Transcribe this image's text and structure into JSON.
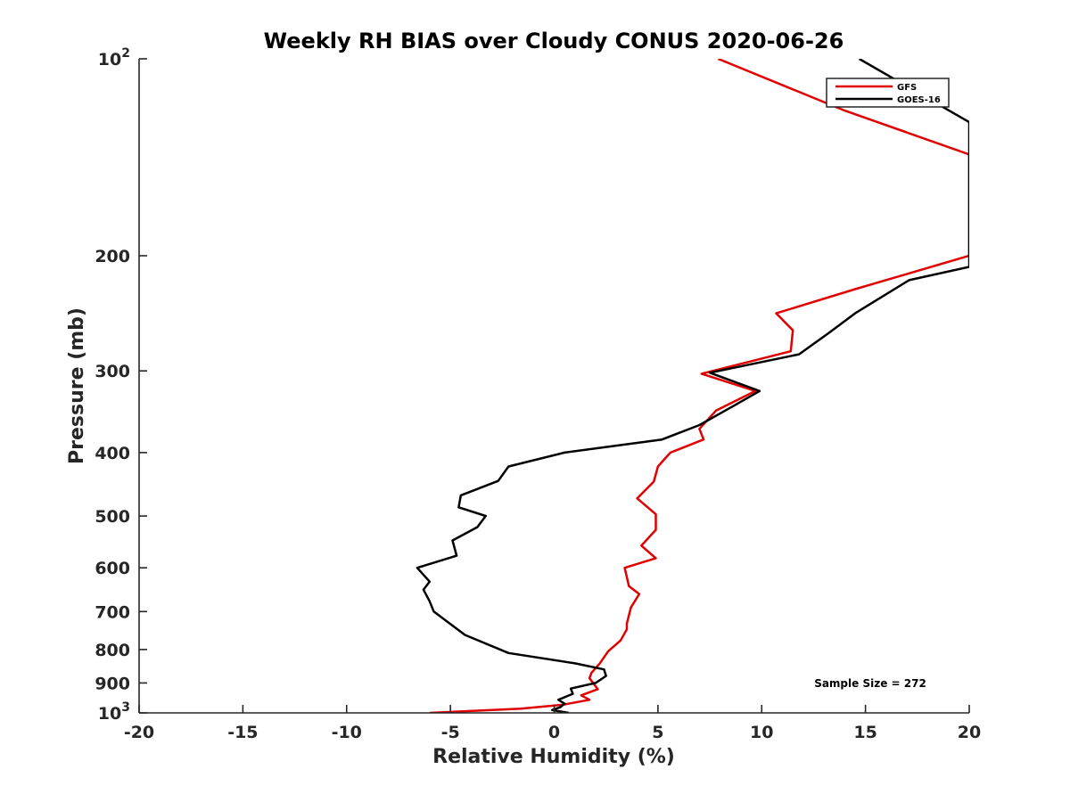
{
  "chart_data": {
    "type": "line",
    "title": "Weekly RH BIAS over Cloudy CONUS 2020-06-26",
    "xlabel": "Relative Humidity (%)",
    "ylabel": "Pressure (mb)",
    "xlim": [
      -20,
      20
    ],
    "ylim": [
      100,
      1000
    ],
    "yscale": "log",
    "y_reversed": true,
    "grid": false,
    "legend_position": "top-right",
    "x_ticks": [
      -20,
      -15,
      -10,
      -5,
      0,
      5,
      10,
      15,
      20
    ],
    "y_ticks": [
      {
        "value": 100,
        "base": "10",
        "exponent": "2"
      },
      {
        "value": 200,
        "label": "200"
      },
      {
        "value": 300,
        "label": "300"
      },
      {
        "value": 400,
        "label": "400"
      },
      {
        "value": 500,
        "label": "500"
      },
      {
        "value": 600,
        "label": "600"
      },
      {
        "value": 700,
        "label": "700"
      },
      {
        "value": 800,
        "label": "800"
      },
      {
        "value": 900,
        "label": "900"
      },
      {
        "value": 1000,
        "base": "10",
        "exponent": "3"
      }
    ],
    "annotation": "Sample Size = 272",
    "series": [
      {
        "name": "GFS",
        "color": "#e00000",
        "points": [
          {
            "x": 7.9,
            "y": 100
          },
          {
            "x": 14.0,
            "y": 120
          },
          {
            "x": 20.0,
            "y": 140
          },
          {
            "x": 20.0,
            "y": 200
          },
          {
            "x": 14.5,
            "y": 225
          },
          {
            "x": 10.7,
            "y": 245
          },
          {
            "x": 11.5,
            "y": 260
          },
          {
            "x": 11.4,
            "y": 280
          },
          {
            "x": 7.1,
            "y": 303
          },
          {
            "x": 9.7,
            "y": 322
          },
          {
            "x": 7.8,
            "y": 345
          },
          {
            "x": 7.0,
            "y": 368
          },
          {
            "x": 7.2,
            "y": 382
          },
          {
            "x": 5.6,
            "y": 400
          },
          {
            "x": 5.0,
            "y": 420
          },
          {
            "x": 4.8,
            "y": 443
          },
          {
            "x": 4.0,
            "y": 470
          },
          {
            "x": 4.9,
            "y": 497
          },
          {
            "x": 4.9,
            "y": 525
          },
          {
            "x": 4.2,
            "y": 555
          },
          {
            "x": 4.9,
            "y": 580
          },
          {
            "x": 3.4,
            "y": 600
          },
          {
            "x": 3.6,
            "y": 640
          },
          {
            "x": 4.1,
            "y": 658
          },
          {
            "x": 3.7,
            "y": 690
          },
          {
            "x": 3.5,
            "y": 730
          },
          {
            "x": 3.5,
            "y": 745
          },
          {
            "x": 3.2,
            "y": 775
          },
          {
            "x": 2.6,
            "y": 805
          },
          {
            "x": 2.2,
            "y": 840
          },
          {
            "x": 1.8,
            "y": 868
          },
          {
            "x": 1.7,
            "y": 885
          },
          {
            "x": 2.1,
            "y": 920
          },
          {
            "x": 1.3,
            "y": 940
          },
          {
            "x": 1.7,
            "y": 955
          },
          {
            "x": 0.4,
            "y": 972
          },
          {
            "x": -1.6,
            "y": 985
          },
          {
            "x": -6.0,
            "y": 1000
          }
        ]
      },
      {
        "name": "GOES-16",
        "color": "#000000",
        "points": [
          {
            "x": 14.7,
            "y": 100
          },
          {
            "x": 20.0,
            "y": 125
          },
          {
            "x": 20.0,
            "y": 208
          },
          {
            "x": 17.1,
            "y": 218
          },
          {
            "x": 14.5,
            "y": 245
          },
          {
            "x": 13.2,
            "y": 263
          },
          {
            "x": 11.8,
            "y": 283
          },
          {
            "x": 7.5,
            "y": 302
          },
          {
            "x": 9.9,
            "y": 322
          },
          {
            "x": 8.6,
            "y": 340
          },
          {
            "x": 7.0,
            "y": 363
          },
          {
            "x": 5.2,
            "y": 382
          },
          {
            "x": 0.5,
            "y": 400
          },
          {
            "x": -2.2,
            "y": 420
          },
          {
            "x": -2.7,
            "y": 442
          },
          {
            "x": -4.5,
            "y": 465
          },
          {
            "x": -4.6,
            "y": 485
          },
          {
            "x": -3.3,
            "y": 500
          },
          {
            "x": -3.7,
            "y": 520
          },
          {
            "x": -4.9,
            "y": 545
          },
          {
            "x": -4.7,
            "y": 575
          },
          {
            "x": -6.6,
            "y": 600
          },
          {
            "x": -6.0,
            "y": 630
          },
          {
            "x": -6.3,
            "y": 648
          },
          {
            "x": -6.0,
            "y": 675
          },
          {
            "x": -5.8,
            "y": 700
          },
          {
            "x": -4.3,
            "y": 760
          },
          {
            "x": -2.2,
            "y": 810
          },
          {
            "x": 1.0,
            "y": 840
          },
          {
            "x": 2.4,
            "y": 858
          },
          {
            "x": 2.5,
            "y": 878
          },
          {
            "x": 2.0,
            "y": 900
          },
          {
            "x": 0.8,
            "y": 918
          },
          {
            "x": 0.9,
            "y": 935
          },
          {
            "x": 0.2,
            "y": 955
          },
          {
            "x": 0.5,
            "y": 968
          },
          {
            "x": 0.3,
            "y": 980
          },
          {
            "x": -0.1,
            "y": 990
          },
          {
            "x": 0.7,
            "y": 1000
          }
        ]
      }
    ]
  }
}
